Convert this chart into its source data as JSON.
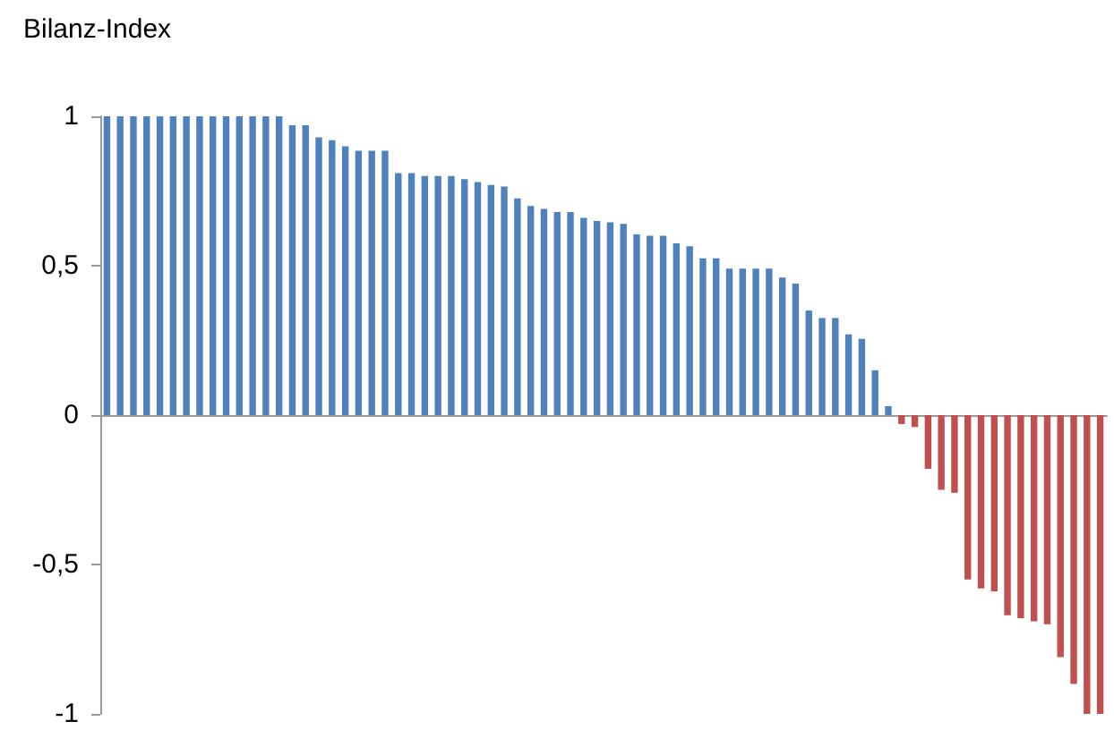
{
  "chart_data": {
    "type": "bar",
    "title": "Bilanz-Index",
    "categories": [
      null,
      null,
      null,
      null,
      null,
      null,
      null,
      null,
      null,
      null,
      null,
      null,
      null,
      null,
      null,
      null,
      null,
      null,
      null,
      null,
      null,
      null,
      null,
      null,
      null,
      null,
      null,
      null,
      null,
      null,
      null,
      null,
      null,
      null,
      null,
      null,
      null,
      null,
      null,
      null,
      null,
      null,
      null,
      null,
      null,
      null,
      null,
      null,
      null,
      null,
      null,
      null,
      null,
      null,
      null,
      null,
      null,
      null,
      null,
      null,
      null,
      null,
      null,
      null,
      null,
      null,
      null,
      null,
      null,
      null,
      null,
      null,
      null,
      null,
      null,
      null
    ],
    "values": [
      1,
      1,
      1,
      1,
      1,
      1,
      1,
      1,
      1,
      1,
      1,
      1,
      1,
      1,
      0.97,
      0.97,
      0.93,
      0.92,
      0.9,
      0.885,
      0.885,
      0.885,
      0.81,
      0.81,
      0.8,
      0.8,
      0.8,
      0.79,
      0.78,
      0.77,
      0.765,
      0.725,
      0.7,
      0.69,
      0.68,
      0.68,
      0.66,
      0.65,
      0.645,
      0.64,
      0.605,
      0.6,
      0.6,
      0.575,
      0.565,
      0.525,
      0.525,
      0.49,
      0.49,
      0.49,
      0.49,
      0.46,
      0.44,
      0.35,
      0.325,
      0.325,
      0.27,
      0.255,
      0.15,
      0.03,
      -0.03,
      -0.04,
      -0.18,
      -0.25,
      -0.26,
      -0.55,
      -0.58,
      -0.59,
      -0.67,
      -0.68,
      -0.69,
      -0.7,
      -0.81,
      -0.9,
      -1,
      -1
    ],
    "colors": [
      "#4f81bd",
      "#4f81bd",
      "#4f81bd",
      "#4f81bd",
      "#4f81bd",
      "#4f81bd",
      "#4f81bd",
      "#4f81bd",
      "#4f81bd",
      "#4f81bd",
      "#4f81bd",
      "#4f81bd",
      "#4f81bd",
      "#4f81bd",
      "#4f81bd",
      "#4f81bd",
      "#4f81bd",
      "#4f81bd",
      "#4f81bd",
      "#4f81bd",
      "#4f81bd",
      "#4f81bd",
      "#4f81bd",
      "#4f81bd",
      "#4f81bd",
      "#4f81bd",
      "#4f81bd",
      "#4f81bd",
      "#4f81bd",
      "#4f81bd",
      "#4f81bd",
      "#4f81bd",
      "#4f81bd",
      "#4f81bd",
      "#4f81bd",
      "#4f81bd",
      "#4f81bd",
      "#4f81bd",
      "#4f81bd",
      "#4f81bd",
      "#4f81bd",
      "#4f81bd",
      "#4f81bd",
      "#4f81bd",
      "#4f81bd",
      "#4f81bd",
      "#4f81bd",
      "#4f81bd",
      "#4f81bd",
      "#4f81bd",
      "#4f81bd",
      "#4f81bd",
      "#4f81bd",
      "#4f81bd",
      "#4f81bd",
      "#4f81bd",
      "#4f81bd",
      "#4f81bd",
      "#4f81bd",
      "#4f81bd",
      "#c0504d",
      "#c0504d",
      "#c0504d",
      "#c0504d",
      "#c0504d",
      "#c0504d",
      "#c0504d",
      "#c0504d",
      "#c0504d",
      "#c0504d",
      "#c0504d",
      "#c0504d",
      "#c0504d",
      "#c0504d",
      "#c0504d",
      "#c0504d"
    ],
    "ylim": [
      -1,
      1
    ],
    "yticks": [
      {
        "value": -1,
        "label": "-1"
      },
      {
        "value": -0.5,
        "label": "-0,5"
      },
      {
        "value": 0,
        "label": "0"
      },
      {
        "value": 0.5,
        "label": "0,5"
      },
      {
        "value": 1,
        "label": "1"
      }
    ],
    "tick_labels": "y"
  }
}
